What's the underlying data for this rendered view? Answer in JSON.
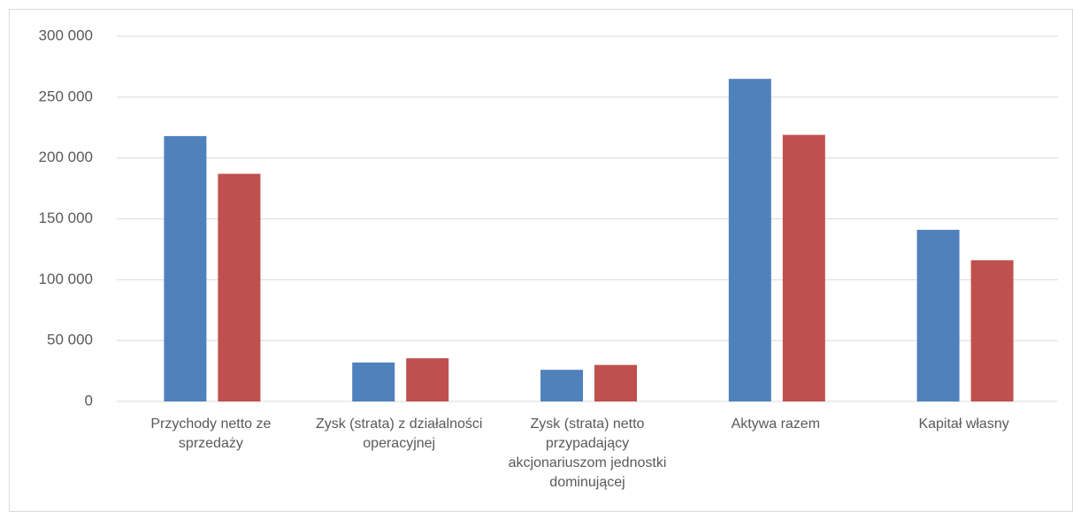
{
  "chart_data": {
    "type": "bar",
    "categories": [
      "Przychody netto ze sprzedaży",
      "Zysk (strata) z działalności operacyjnej",
      "Zysk (strata) netto przypadający akcjonariuszom jednostki dominującej",
      "Aktywa razem",
      "Kapitał własny"
    ],
    "series": [
      {
        "color": "#4f81bd",
        "values": [
          218000,
          32000,
          26000,
          265000,
          141000
        ]
      },
      {
        "color": "#c0504d",
        "values": [
          187000,
          35500,
          30000,
          219000,
          116000
        ]
      }
    ],
    "ylim": [
      0,
      300000
    ],
    "yticks": [
      0,
      {
        "value": 50000,
        "label": "50 000"
      },
      {
        "value": 100000,
        "label": "100 000"
      },
      {
        "value": 150000,
        "label": "150 000"
      },
      {
        "value": 200000,
        "label": "200 000"
      },
      {
        "value": 250000,
        "label": "250 000"
      },
      {
        "value": 300000,
        "label": "300 000"
      }
    ],
    "grid": true
  }
}
